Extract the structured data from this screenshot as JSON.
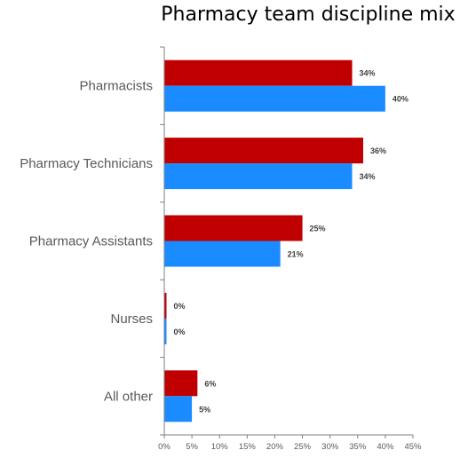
{
  "chart_data": {
    "type": "bar",
    "orientation": "horizontal",
    "title": "Pharmacy team discipline mix",
    "xlabel": "",
    "ylabel": "",
    "categories": [
      "Pharmacists",
      "Pharmacy Technicians",
      "Pharmacy Assistants",
      "Nurses",
      "All other"
    ],
    "series": [
      {
        "color": "#c00000",
        "values": [
          34,
          36,
          25,
          0,
          6
        ]
      },
      {
        "color": "#1a8cff",
        "values": [
          40,
          34,
          21,
          0,
          5
        ]
      }
    ],
    "data_labels": [
      [
        "34%",
        "36%",
        "25%",
        "0%",
        "6%"
      ],
      [
        "40%",
        "34%",
        "21%",
        "0%",
        "5%"
      ]
    ],
    "xlim": [
      0,
      45
    ],
    "xticks": [
      "0%",
      "5%",
      "10%",
      "15%",
      "20%",
      "25%",
      "30%",
      "35%",
      "40%",
      "45%"
    ],
    "grid": false,
    "legend": "none"
  }
}
